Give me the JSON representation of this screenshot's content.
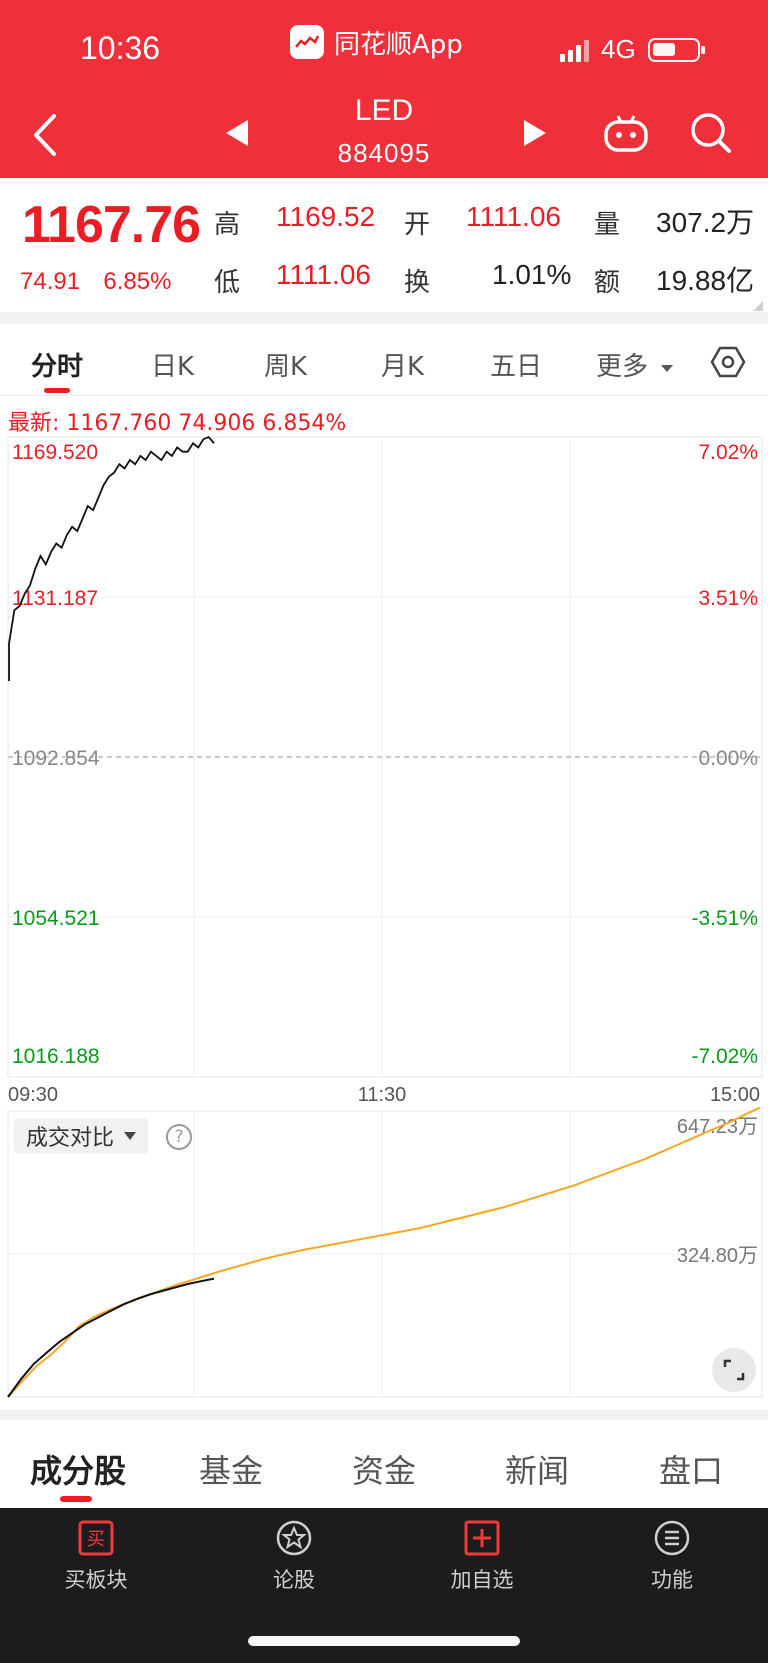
{
  "status": {
    "time": "10:36",
    "app_name": "同花顺App",
    "network": "4G"
  },
  "nav": {
    "title": "LED",
    "code": "884095"
  },
  "quote": {
    "price": "1167.76",
    "change": "74.91",
    "change_pct": "6.85%",
    "high_label": "高",
    "high": "1169.52",
    "open_label": "开",
    "open": "1111.06",
    "volume_label": "量",
    "volume": "307.2万",
    "low_label": "低",
    "low": "1111.06",
    "turnover_label": "换",
    "turnover": "1.01%",
    "amount_label": "额",
    "amount": "19.88亿"
  },
  "tabs": [
    "分时",
    "日K",
    "周K",
    "月K",
    "五日",
    "更多"
  ],
  "latest_line": "最新: 1167.760  74.906  6.854%",
  "chart_data": {
    "type": "line",
    "price_ticks_left": [
      "1169.520",
      "1131.187",
      "1092.854",
      "1054.521",
      "1016.188"
    ],
    "pct_ticks_right": [
      "7.02%",
      "3.51%",
      "0.00%",
      "-3.51%",
      "-7.02%"
    ],
    "x_ticks": [
      "09:30",
      "11:30",
      "15:00"
    ],
    "ylim": [
      1016.188,
      1169.52
    ],
    "prev_close": 1092.854,
    "price_series": [
      1120,
      1128,
      1129,
      1132,
      1134,
      1138,
      1141,
      1139,
      1142,
      1144,
      1143,
      1146,
      1148,
      1147,
      1150,
      1153,
      1152,
      1155,
      1158,
      1160,
      1161,
      1163,
      1162,
      1164,
      1163,
      1165,
      1164,
      1166,
      1165,
      1164,
      1166,
      1165,
      1167,
      1166,
      1166,
      1168,
      1167,
      1169,
      1169.5,
      1168
    ],
    "volume_panel": {
      "selector": "成交对比",
      "help": "?",
      "y_ticks": [
        "647.23万",
        "324.80万"
      ],
      "ylim": [
        0,
        647.23
      ],
      "today": [
        0,
        40,
        75,
        100,
        125,
        145,
        165,
        180,
        195,
        210,
        222,
        232,
        240,
        248,
        256,
        262,
        268
      ],
      "reference": [
        0,
        35,
        70,
        95,
        125,
        160,
        180,
        195,
        208,
        220,
        232,
        244,
        255,
        265,
        275,
        285,
        294,
        303,
        312,
        320,
        327,
        334,
        340,
        346,
        352,
        358,
        364,
        370,
        376,
        382,
        390,
        398,
        406,
        414,
        422,
        430,
        440,
        450,
        460,
        470,
        480,
        492,
        504,
        516,
        528,
        540,
        554,
        568,
        582,
        596,
        610,
        624,
        640,
        655
      ]
    }
  },
  "info_tabs": [
    "成分股",
    "基金",
    "资金",
    "新闻",
    "盘口"
  ],
  "bottom_bar": [
    {
      "icon": "buy-icon",
      "label": "买板块"
    },
    {
      "icon": "discuss-icon",
      "label": "论股"
    },
    {
      "icon": "add-watch-icon",
      "label": "加自选"
    },
    {
      "icon": "menu-icon",
      "label": "功能"
    }
  ],
  "colors": {
    "brand_red": "#ef2f39",
    "price_red": "#e91e25",
    "down_green": "#0a9a1a",
    "volume_orange": "#f5a623"
  }
}
